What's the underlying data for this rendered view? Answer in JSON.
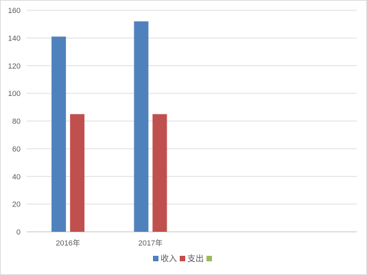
{
  "chart_data": {
    "type": "bar",
    "categories": [
      "2016年",
      "2017年",
      "",
      ""
    ],
    "series": [
      {
        "name": "收入",
        "color": "#4f81bd",
        "values": [
          141,
          152,
          null,
          null
        ]
      },
      {
        "name": "支出",
        "color": "#c0504d",
        "values": [
          85,
          85,
          null,
          null
        ]
      },
      {
        "name": "",
        "color": "#9bbb59",
        "values": [
          null,
          null,
          null,
          null
        ]
      }
    ],
    "ylim": [
      0,
      160
    ],
    "yticks": [
      0,
      20,
      40,
      60,
      80,
      100,
      120,
      140,
      160
    ],
    "grid": true,
    "legend": "bottom"
  }
}
